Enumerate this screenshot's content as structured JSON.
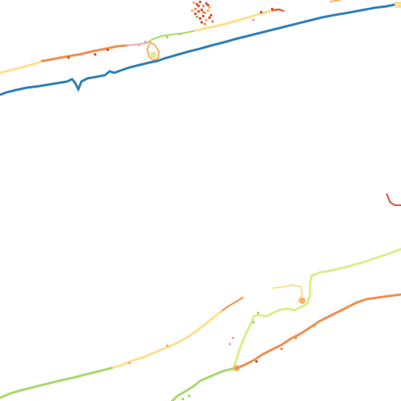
{
  "map": {
    "background_color": "#ffffff",
    "labels": [],
    "colors": {
      "blue_route": "#2c7fb8",
      "red": "#e34a33",
      "orange": "#f08d4f",
      "light_orange": "#fdae61",
      "yellow": "#fee08b",
      "pale_yellow": "#ffffbf",
      "light_green": "#d9ef8b",
      "green": "#a6d96a",
      "pink": "#f4a6b8"
    }
  }
}
